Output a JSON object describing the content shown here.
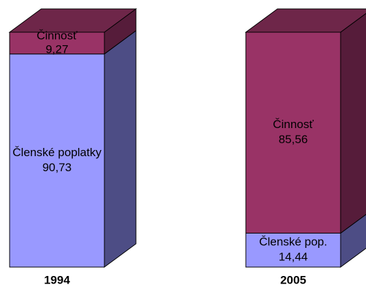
{
  "chart_data": {
    "type": "bar3d_stacked",
    "categories": [
      "1994",
      "2005"
    ],
    "ylim": [
      0,
      100
    ],
    "series": [
      {
        "labels": [
          "Členské poplatky",
          "Členské pop."
        ],
        "color": "#9999ff",
        "side_color": "#4d4d85",
        "top_color": "#7070c0",
        "values": [
          90.73,
          14.44
        ],
        "value_labels": [
          "90,73",
          "14,44"
        ]
      },
      {
        "labels": [
          "Činnosť",
          "Činnosť"
        ],
        "color": "#993366",
        "side_color": "#561c3a",
        "top_color": "#6e2649",
        "values": [
          9.27,
          85.56
        ],
        "value_labels": [
          "9,27",
          "85,56"
        ]
      }
    ]
  }
}
